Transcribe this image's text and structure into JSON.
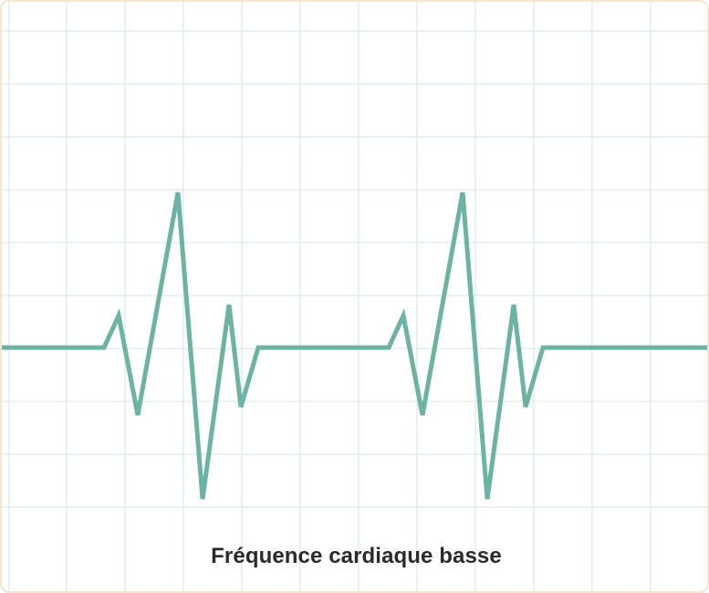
{
  "caption": "Fréquence cardiaque basse",
  "colors": {
    "trace": "#6db3a3",
    "grid": "#dfe9ea",
    "border": "#f1e6cf",
    "caption": "#2a2a2a",
    "background": "#ffffff"
  },
  "trace": {
    "baseline_level": "middle",
    "beats_shown": 2
  }
}
